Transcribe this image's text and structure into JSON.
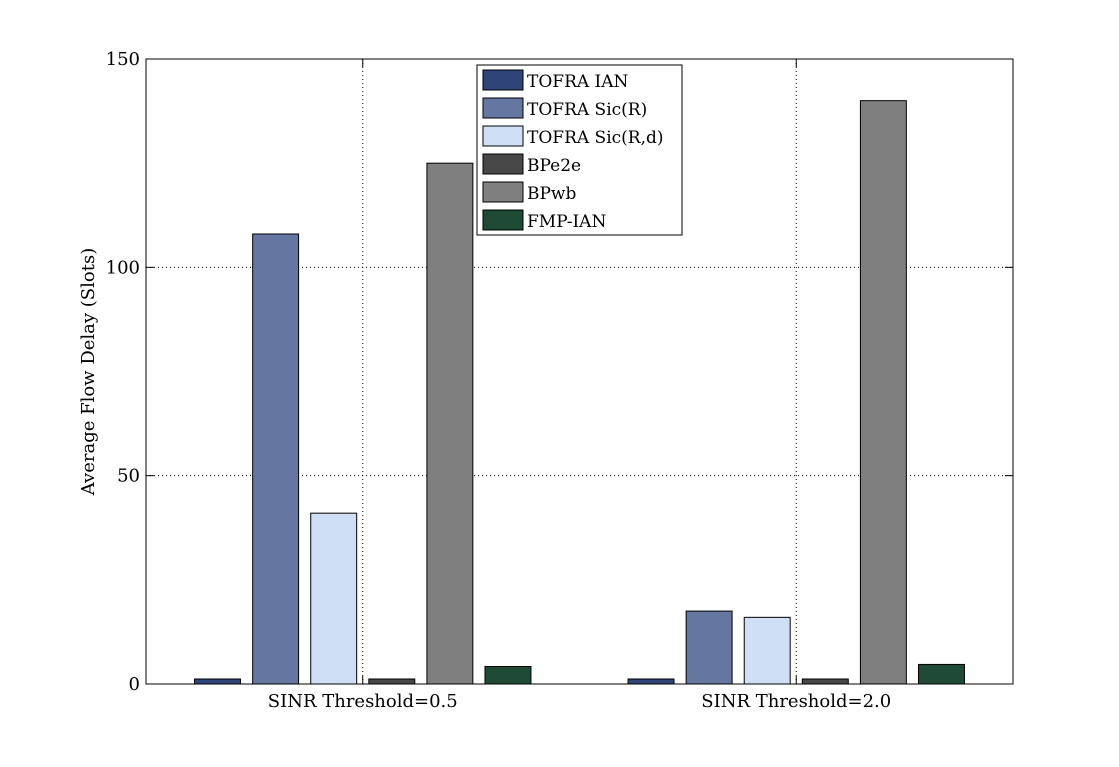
{
  "chart_data": {
    "type": "bar",
    "ylabel": "Average Flow Delay (Slots)",
    "ylim": [
      0,
      150
    ],
    "yticks": [
      0,
      50,
      100,
      150
    ],
    "grid": true,
    "legend_position": "top-center",
    "categories": [
      "SINR Threshold=0.5",
      "SINR Threshold=2.0"
    ],
    "series": [
      {
        "name": "TOFRA IAN",
        "color": "#2f4478",
        "values": [
          1.2,
          1.2
        ]
      },
      {
        "name": "TOFRA Sic(R)",
        "color": "#6577a0",
        "values": [
          108,
          17.5
        ]
      },
      {
        "name": "TOFRA Sic(R,d)",
        "color": "#cfe0f6",
        "values": [
          41,
          16
        ]
      },
      {
        "name": "BPe2e",
        "color": "#484848",
        "values": [
          1.2,
          1.2
        ]
      },
      {
        "name": "BPwb",
        "color": "#7f7f7f",
        "values": [
          125,
          140
        ]
      },
      {
        "name": "FMP-IAN",
        "color": "#1e4a36",
        "values": [
          4.2,
          4.7
        ]
      }
    ]
  }
}
